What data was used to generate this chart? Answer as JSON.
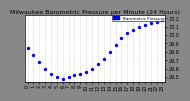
{
  "title": "Milwaukee Barometric Pressure per Minute (24 Hours)",
  "x": [
    0,
    1,
    2,
    3,
    4,
    5,
    6,
    7,
    8,
    9,
    10,
    11,
    12,
    13,
    14,
    15,
    16,
    17,
    18,
    19,
    20,
    21,
    22,
    23
  ],
  "y": [
    29.84,
    29.76,
    29.68,
    29.6,
    29.54,
    29.5,
    29.48,
    29.5,
    29.52,
    29.54,
    29.56,
    29.6,
    29.66,
    29.72,
    29.8,
    29.88,
    29.96,
    30.02,
    30.06,
    30.1,
    30.12,
    30.14,
    30.16,
    30.18
  ],
  "dot_color": "#0000ff",
  "dot_size": 2,
  "ylim": [
    29.44,
    30.24
  ],
  "yticks": [
    29.5,
    29.6,
    29.7,
    29.8,
    29.9,
    30.0,
    30.1,
    30.2
  ],
  "ytick_labels": [
    "29.5",
    "29.6",
    "29.7",
    "29.8",
    "29.9",
    "30.0",
    "30.1",
    "30.2"
  ],
  "xticks": [
    0,
    1,
    2,
    3,
    4,
    5,
    6,
    7,
    8,
    9,
    10,
    11,
    12,
    13,
    14,
    15,
    16,
    17,
    18,
    19,
    20,
    21,
    22,
    23
  ],
  "legend_label": "Barometric Pressure",
  "legend_color": "#0000ff",
  "plot_bg": "#ffffff",
  "fig_bg": "#888888",
  "title_fontsize": 4.5,
  "tick_fontsize": 3.5,
  "legend_fontsize": 3.0,
  "grid_color": "#bbbbbb",
  "grid_style": ":"
}
